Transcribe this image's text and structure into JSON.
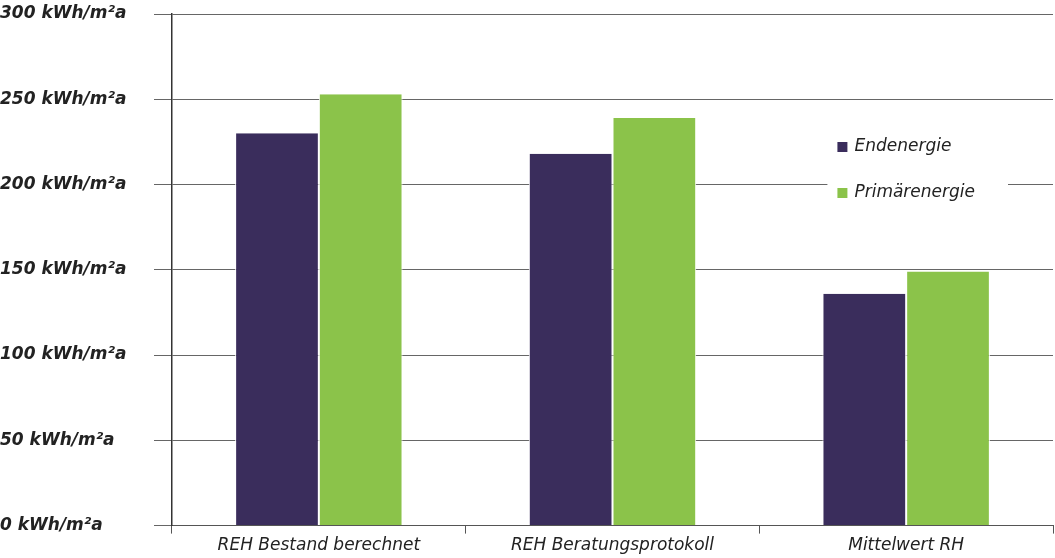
{
  "chart_data": {
    "type": "bar",
    "categories": [
      "REH Bestand berechnet",
      "REH Beratungsprotokoll",
      "Mittelwert RH"
    ],
    "series": [
      {
        "name": "Endenergie",
        "color": "#3a2d5c",
        "values": [
          230,
          218,
          136
        ]
      },
      {
        "name": "Primärenergie",
        "color": "#8bc34a",
        "values": [
          253,
          239,
          149
        ]
      }
    ],
    "ylim": [
      0,
      300
    ],
    "yticks": [
      {
        "value": 0,
        "label": "0 kWh/m²a"
      },
      {
        "value": 50,
        "label": "50 kWh/m²a"
      },
      {
        "value": 100,
        "label": "100 kWh/m²a"
      },
      {
        "value": 150,
        "label": "150 kWh/m²a"
      },
      {
        "value": 200,
        "label": "200 kWh/m²a"
      },
      {
        "value": 250,
        "label": "250 kWh/m²a"
      },
      {
        "value": 300,
        "label": "300 kWh/m²a"
      }
    ],
    "grid": "y",
    "legend": "top right"
  }
}
